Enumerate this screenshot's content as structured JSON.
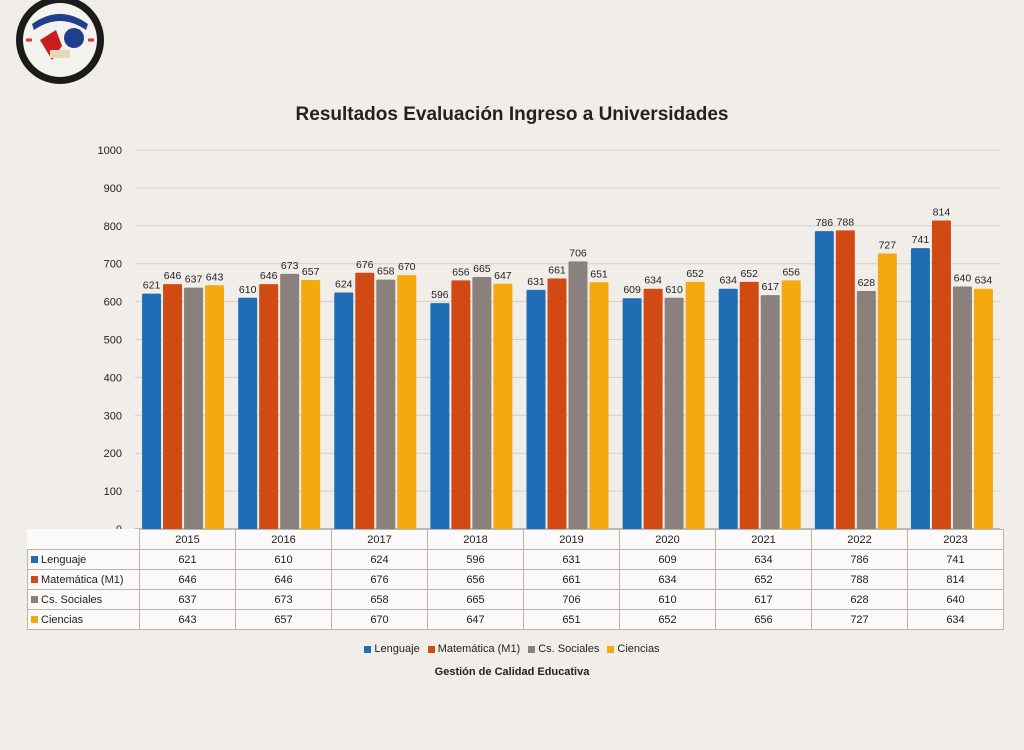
{
  "chart_data": {
    "type": "bar",
    "title": "Resultados Evaluación Ingreso a Universidades",
    "categories": [
      "2015",
      "2016",
      "2017",
      "2018",
      "2019",
      "2020",
      "2021",
      "2022",
      "2023"
    ],
    "series": [
      {
        "name": "Lenguaje",
        "color": "#1f6db4",
        "values": [
          621,
          610,
          624,
          596,
          631,
          609,
          634,
          786,
          741
        ]
      },
      {
        "name": "Matemática (M1)",
        "color": "#d24a13",
        "values": [
          646,
          646,
          676,
          656,
          661,
          634,
          652,
          788,
          814
        ]
      },
      {
        "name": "Cs. Sociales",
        "color": "#8a817c",
        "values": [
          637,
          673,
          658,
          665,
          706,
          610,
          617,
          628,
          640
        ]
      },
      {
        "name": "Ciencias",
        "color": "#f4a90f",
        "values": [
          643,
          657,
          670,
          647,
          651,
          652,
          656,
          727,
          634
        ]
      }
    ],
    "ylim": [
      0,
      1000
    ],
    "yticks": [
      "0",
      "100",
      "200",
      "300",
      "400",
      "500",
      "600",
      "700",
      "800",
      "900",
      "1000"
    ],
    "grid": true,
    "legend_position": "bottom",
    "data_table": true
  },
  "footer": "Gestión de Calidad Educativa",
  "logo": {
    "icon": "school-crest-icon"
  }
}
